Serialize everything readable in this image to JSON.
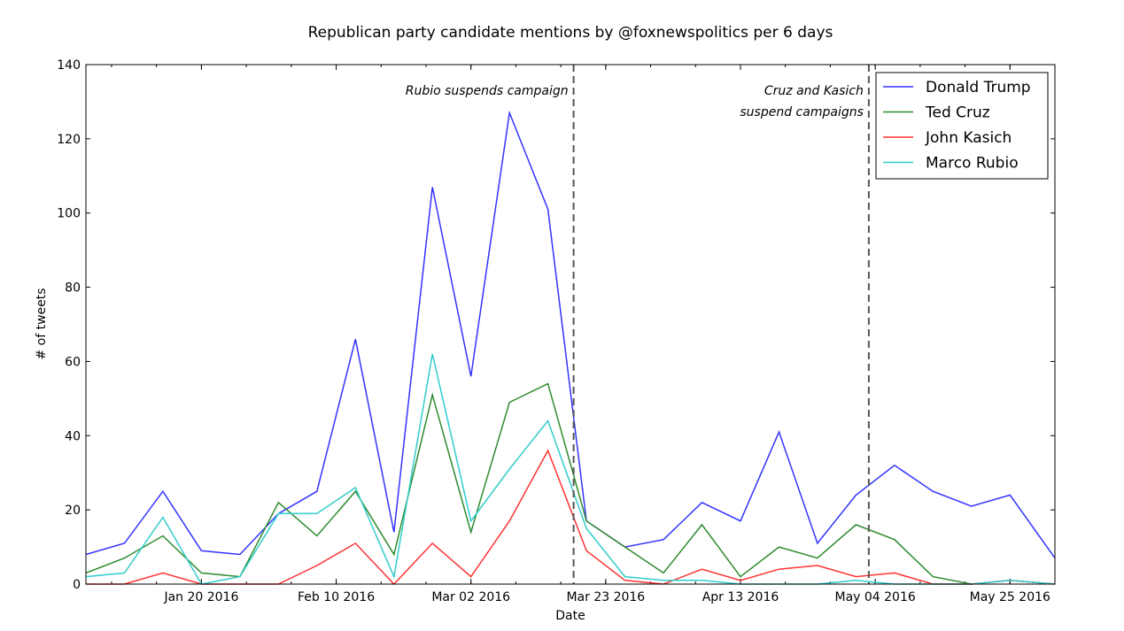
{
  "chart_data": {
    "type": "line",
    "title": "Republican party candidate mentions by @foxnewspolitics per 6 days",
    "xlabel": "Date",
    "ylabel": "# of tweets",
    "ylim": [
      0,
      140
    ],
    "yticks": [
      0,
      20,
      40,
      60,
      80,
      100,
      120,
      140
    ],
    "xlim": [
      "2016-01-02",
      "2016-06-01"
    ],
    "xticks": [
      {
        "date": "2016-01-20",
        "label": "Jan 20 2016"
      },
      {
        "date": "2016-02-10",
        "label": "Feb 10 2016"
      },
      {
        "date": "2016-03-02",
        "label": "Mar 02 2016"
      },
      {
        "date": "2016-03-23",
        "label": "Mar 23 2016"
      },
      {
        "date": "2016-04-13",
        "label": "Apr 13 2016"
      },
      {
        "date": "2016-05-04",
        "label": "May 04 2016"
      },
      {
        "date": "2016-05-25",
        "label": "May 25 2016"
      }
    ],
    "x": [
      "2016-01-02",
      "2016-01-08",
      "2016-01-14",
      "2016-01-20",
      "2016-01-26",
      "2016-02-01",
      "2016-02-07",
      "2016-02-13",
      "2016-02-19",
      "2016-02-25",
      "2016-03-02",
      "2016-03-08",
      "2016-03-14",
      "2016-03-20",
      "2016-03-26",
      "2016-04-01",
      "2016-04-07",
      "2016-04-13",
      "2016-04-19",
      "2016-04-25",
      "2016-05-01",
      "2016-05-07",
      "2016-05-13",
      "2016-05-19",
      "2016-05-25",
      "2016-06-01"
    ],
    "series": [
      {
        "name": "Donald Trump",
        "color": "#3333ff",
        "values": [
          8,
          11,
          25,
          9,
          8,
          19,
          25,
          66,
          14,
          107,
          56,
          127,
          101,
          17,
          10,
          12,
          22,
          17,
          41,
          11,
          24,
          32,
          25,
          21,
          24,
          7
        ]
      },
      {
        "name": "Ted Cruz",
        "color": "#2e8b2e",
        "values": [
          3,
          7,
          13,
          3,
          2,
          22,
          13,
          25,
          8,
          51,
          14,
          49,
          54,
          17,
          10,
          3,
          16,
          2,
          10,
          7,
          16,
          12,
          2,
          0,
          1,
          0
        ]
      },
      {
        "name": "John Kasich",
        "color": "#ff3333",
        "values": [
          0,
          0,
          3,
          0,
          0,
          0,
          5,
          11,
          0,
          11,
          2,
          17,
          36,
          9,
          1,
          0,
          4,
          1,
          4,
          5,
          2,
          3,
          0,
          0,
          1,
          0
        ]
      },
      {
        "name": "Marco Rubio",
        "color": "#33cccc",
        "values": [
          2,
          3,
          18,
          0,
          2,
          19,
          19,
          26,
          2,
          62,
          17,
          31,
          44,
          15,
          2,
          1,
          1,
          0,
          0,
          0,
          1,
          0,
          0,
          0,
          1,
          0
        ]
      }
    ],
    "vlines": [
      {
        "date": "2016-03-18",
        "label_lines": [
          "Rubio suspends campaign"
        ]
      },
      {
        "date": "2016-05-03",
        "label_lines": [
          "Cruz and Kasich",
          "suspend campaigns"
        ]
      }
    ],
    "grid": false,
    "legend_position": "top-right"
  }
}
